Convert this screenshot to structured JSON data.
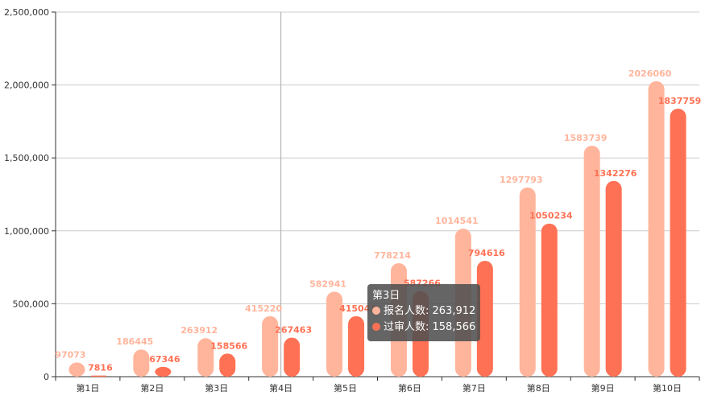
{
  "chart_data": {
    "type": "bar",
    "categories": [
      "第1日",
      "第2日",
      "第3日",
      "第4日",
      "第5日",
      "第6日",
      "第7日",
      "第8日",
      "第9日",
      "第10日"
    ],
    "series": [
      {
        "name": "报名人数",
        "color": "#ffb59c",
        "values": [
          97073,
          186445,
          263912,
          415220,
          582941,
          778214,
          1014541,
          1297793,
          1583739,
          2026060
        ]
      },
      {
        "name": "过审人数",
        "color": "#ff7154",
        "values": [
          7816,
          67346,
          158566,
          267463,
          415043,
          587266,
          794616,
          1050234,
          1342276,
          1837759
        ]
      }
    ],
    "y_ticks": [
      "0",
      "500,000",
      "1,000,000",
      "1,500,000",
      "2,000,000",
      "2,500,000"
    ],
    "ylim": [
      0,
      2500000
    ],
    "grid": true,
    "pointer_category": "第4日"
  },
  "tooltip": {
    "title": "第3日",
    "rows": [
      {
        "label": "报名人数: 263,912",
        "color": "#ffb59c"
      },
      {
        "label": "过审人数: 158,566",
        "color": "#ff7154"
      }
    ]
  }
}
